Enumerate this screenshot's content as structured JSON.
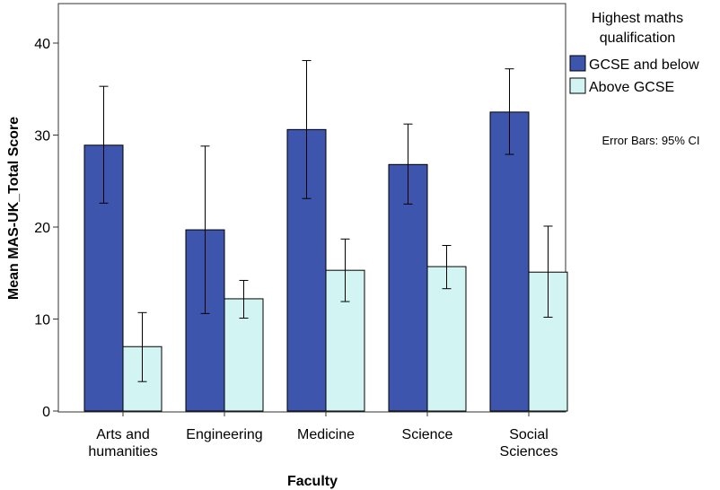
{
  "chart_data": {
    "type": "bar",
    "categories": [
      [
        "Arts and",
        "humanities"
      ],
      [
        "Engineering"
      ],
      [
        "Medicine"
      ],
      [
        "Science"
      ],
      [
        "Social",
        "Sciences"
      ]
    ],
    "series": [
      {
        "name": "GCSE and below",
        "color": "#3d55ad",
        "values": [
          28.9,
          19.7,
          30.6,
          26.8,
          32.5
        ],
        "ci_low": [
          22.6,
          10.6,
          23.1,
          22.5,
          27.9
        ],
        "ci_high": [
          35.3,
          28.8,
          38.1,
          31.2,
          37.2
        ]
      },
      {
        "name": "Above GCSE",
        "color": "#d2f5f3",
        "values": [
          7.0,
          12.2,
          15.3,
          15.7,
          15.1
        ],
        "ci_low": [
          3.2,
          10.1,
          11.9,
          13.3,
          10.2
        ],
        "ci_high": [
          10.7,
          14.2,
          18.7,
          18.0,
          20.1
        ]
      }
    ],
    "xlabel": "Faculty",
    "ylabel": "Mean MAS-UK_Total Score",
    "ylim": [
      0,
      44
    ],
    "yticks": [
      0,
      10,
      20,
      30,
      40
    ],
    "legend_title": [
      "Highest maths",
      "qualification"
    ],
    "legend_position": "right",
    "note": "Error Bars: 95% CI",
    "grid": false
  }
}
